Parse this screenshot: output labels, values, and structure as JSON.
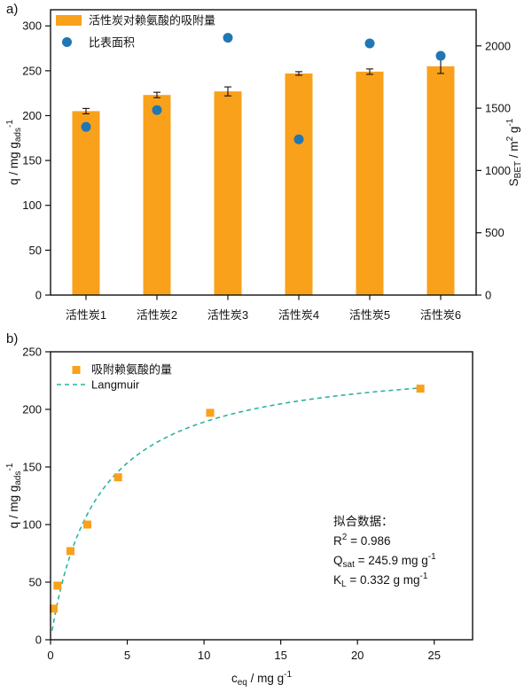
{
  "page": {
    "panel_a_label": "a)",
    "panel_b_label": "b)"
  },
  "colors": {
    "bar_orange": "#F9A11B",
    "dot_blue": "#1F77B4",
    "fit_teal": "#2CB39E",
    "axis_black": "#111111"
  },
  "chart_data": [
    {
      "type": "bar",
      "panel": "a",
      "categories": [
        "活性炭1",
        "活性炭2",
        "活性炭3",
        "活性炭4",
        "活性炭5",
        "活性炭6"
      ],
      "series": [
        {
          "name": "活性炭对赖氨酸的吸附量",
          "kind": "bar",
          "axis": "left",
          "values": [
            205,
            223,
            227,
            247,
            249,
            255
          ],
          "errors": [
            3,
            3,
            5,
            2,
            3,
            8
          ],
          "color_key": "bar_orange"
        },
        {
          "name": "比表面积",
          "kind": "scatter",
          "axis": "right",
          "values": [
            1350,
            1485,
            2065,
            1250,
            2020,
            1920
          ],
          "color_key": "dot_blue"
        }
      ],
      "left_axis": {
        "ticks": [
          0,
          50,
          100,
          150,
          200,
          250,
          300
        ],
        "lim": [
          0,
          318
        ],
        "label": [
          {
            "t": "q / mg g"
          },
          {
            "t": "ads",
            "s": "sub"
          },
          {
            "t": "-1",
            "s": "sup"
          }
        ]
      },
      "right_axis": {
        "ticks": [
          0,
          500,
          1000,
          1500,
          2000
        ],
        "lim": [
          0,
          2290
        ],
        "label": [
          {
            "t": "S"
          },
          {
            "t": "BET",
            "s": "sub"
          },
          {
            "t": " / m"
          },
          {
            "t": "2",
            "s": "sup"
          },
          {
            "t": " g"
          },
          {
            "t": "-1",
            "s": "sup"
          }
        ]
      },
      "legend_position": "upper-left",
      "grid": false
    },
    {
      "type": "scatter",
      "panel": "b",
      "series": [
        {
          "name": "吸附赖氨酸的量",
          "kind": "scatter",
          "marker": "square",
          "x": [
            0.2,
            0.45,
            1.3,
            2.4,
            4.4,
            10.4,
            24.1
          ],
          "y": [
            27,
            47,
            77,
            100,
            141,
            197,
            218
          ],
          "color_key": "bar_orange"
        },
        {
          "name": "Langmuir",
          "kind": "fit-line",
          "model": "langmuir",
          "Qsat": 245.9,
          "KL": 0.332,
          "x_range": [
            0.1,
            24.1
          ],
          "dashed": true,
          "color_key": "fit_teal"
        }
      ],
      "x_axis": {
        "ticks": [
          0,
          5,
          10,
          15,
          20,
          25
        ],
        "lim": [
          0,
          27.5
        ],
        "label": [
          {
            "t": "c"
          },
          {
            "t": "eq",
            "s": "sub"
          },
          {
            "t": " / mg g"
          },
          {
            "t": "-1",
            "s": "sup"
          }
        ]
      },
      "y_axis": {
        "ticks": [
          0,
          50,
          100,
          150,
          200,
          250
        ],
        "lim": [
          0,
          250
        ],
        "label": [
          {
            "t": "q / mg g"
          },
          {
            "t": "ads",
            "s": "sub"
          },
          {
            "t": "-1",
            "s": "sup"
          }
        ]
      },
      "annotation": {
        "title": "拟合数据：",
        "lines": [
          [
            {
              "t": "R"
            },
            {
              "t": "2",
              "s": "sup"
            },
            {
              "t": " = 0.986"
            }
          ],
          [
            {
              "t": "Q"
            },
            {
              "t": "sat",
              "s": "sub"
            },
            {
              "t": " = 245.9 mg g"
            },
            {
              "t": "-1",
              "s": "sup"
            }
          ],
          [
            {
              "t": "K"
            },
            {
              "t": "L",
              "s": "sub"
            },
            {
              "t": " = 0.332 g mg"
            },
            {
              "t": "-1",
              "s": "sup"
            }
          ]
        ]
      },
      "legend_position": "upper-left",
      "grid": false
    }
  ]
}
